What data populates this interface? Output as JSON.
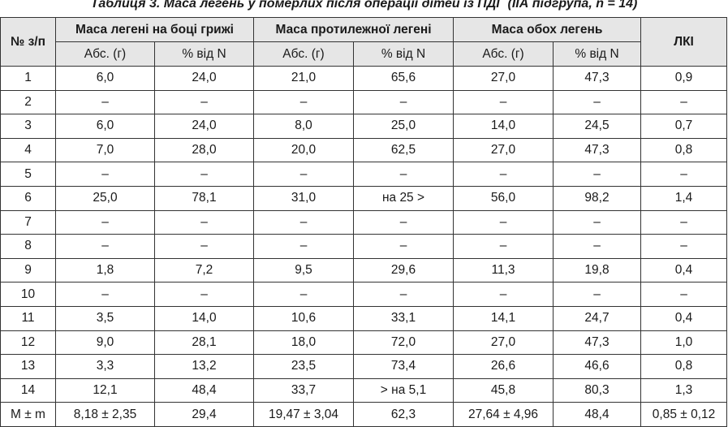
{
  "caption": "Таблиця 3. Маса легень у померлих після операції дітей із ПДГ (ІІА підгрупа, n = 14)",
  "headers": {
    "num": "№ з/п",
    "group1": "Маса легені на боці грижі",
    "group2": "Маса протилежної легені",
    "group3": "Маса обох легень",
    "lki": "ЛКІ",
    "abs": "Абс. (г)",
    "pct": "% від N"
  },
  "rows": [
    [
      "1",
      "6,0",
      "24,0",
      "21,0",
      "65,6",
      "27,0",
      "47,3",
      "0,9"
    ],
    [
      "2",
      "–",
      "–",
      "–",
      "–",
      "–",
      "–",
      "–"
    ],
    [
      "3",
      "6,0",
      "24,0",
      "8,0",
      "25,0",
      "14,0",
      "24,5",
      "0,7"
    ],
    [
      "4",
      "7,0",
      "28,0",
      "20,0",
      "62,5",
      "27,0",
      "47,3",
      "0,8"
    ],
    [
      "5",
      "–",
      "–",
      "–",
      "–",
      "–",
      "–",
      "–"
    ],
    [
      "6",
      "25,0",
      "78,1",
      "31,0",
      "на 25 >",
      "56,0",
      "98,2",
      "1,4"
    ],
    [
      "7",
      "–",
      "–",
      "–",
      "–",
      "–",
      "–",
      "–"
    ],
    [
      "8",
      "–",
      "–",
      "–",
      "–",
      "–",
      "–",
      "–"
    ],
    [
      "9",
      "1,8",
      "7,2",
      "9,5",
      "29,6",
      "11,3",
      "19,8",
      "0,4"
    ],
    [
      "10",
      "–",
      "–",
      "–",
      "–",
      "–",
      "–",
      "–"
    ],
    [
      "11",
      "3,5",
      "14,0",
      "10,6",
      "33,1",
      "14,1",
      "24,7",
      "0,4"
    ],
    [
      "12",
      "9,0",
      "28,1",
      "18,0",
      "72,0",
      "27,0",
      "47,3",
      "1,0"
    ],
    [
      "13",
      "3,3",
      "13,2",
      "23,5",
      "73,4",
      "26,6",
      "46,6",
      "0,8"
    ],
    [
      "14",
      "12,1",
      "48,4",
      "33,7",
      "> на 5,1",
      "45,8",
      "80,3",
      "1,3"
    ],
    [
      "M ± m",
      "8,18 ± 2,35",
      "29,4",
      "19,47 ± 3,04",
      "62,3",
      "27,64 ± 4,96",
      "48,4",
      "0,85 ± 0,12"
    ]
  ],
  "colors": {
    "header_bg": "#e6e6e6",
    "border": "#333333",
    "text": "#1a1a1a"
  }
}
